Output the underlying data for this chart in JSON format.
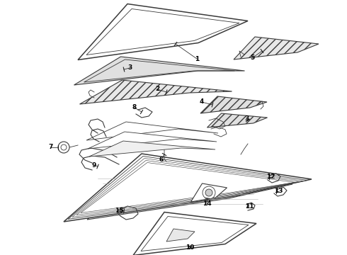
{
  "bg_color": "#ffffff",
  "lc": "#3a3a3a",
  "figsize": [
    4.9,
    3.6
  ],
  "dpi": 100,
  "hatch_lc": "#555555"
}
